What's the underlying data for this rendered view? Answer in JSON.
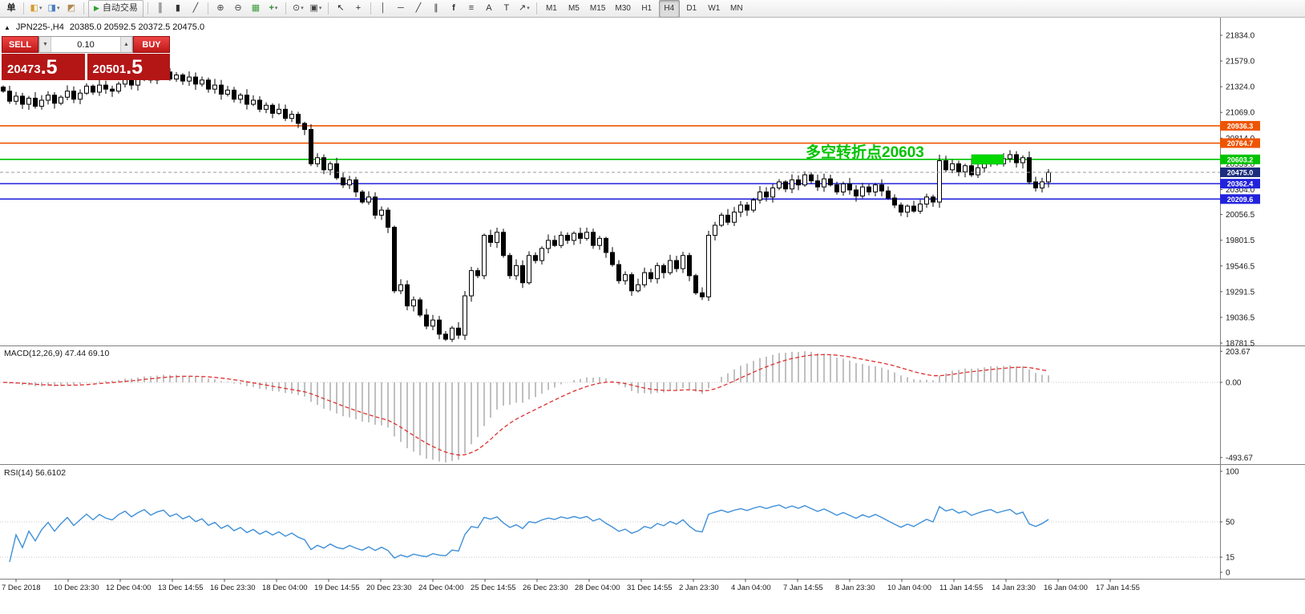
{
  "toolbar": {
    "groups": [
      {
        "items": [
          {
            "name": "new-order-button",
            "glyph": "单",
            "fg": "#222",
            "bold": true
          }
        ]
      },
      {
        "items": [
          {
            "name": "new-chart-button",
            "glyph": "◧",
            "fg": "#d79c2e",
            "caret": true
          },
          {
            "name": "profiles-button",
            "glyph": "◨",
            "fg": "#4a7ec0",
            "caret": true
          },
          {
            "name": "alerts-button",
            "glyph": "◩",
            "fg": "#b08a50"
          }
        ]
      },
      {
        "items": [
          {
            "name": "autotrading-button",
            "kind": "autotrade",
            "label": "自动交易"
          }
        ]
      },
      {
        "items": [
          {
            "name": "bar-chart-button",
            "glyph": "║",
            "fg": "#333"
          },
          {
            "name": "candlestick-chart-button",
            "glyph": "▮",
            "fg": "#333"
          },
          {
            "name": "line-chart-button",
            "glyph": "╱",
            "fg": "#333"
          }
        ]
      },
      {
        "items": [
          {
            "name": "zoom-in-button",
            "glyph": "⊕",
            "fg": "#444"
          },
          {
            "name": "zoom-out-button",
            "glyph": "⊖",
            "fg": "#444"
          },
          {
            "name": "tile-windows-button",
            "glyph": "▦",
            "fg": "#3f9c3f"
          },
          {
            "name": "indicators-button",
            "glyph": "+",
            "fg": "#2e8b2e",
            "bold": true,
            "caret": true
          }
        ]
      },
      {
        "items": [
          {
            "name": "periods-button",
            "glyph": "⊙",
            "fg": "#444",
            "caret": true
          },
          {
            "name": "templates-button",
            "glyph": "▣",
            "fg": "#444",
            "caret": true
          }
        ]
      },
      {
        "items": [
          {
            "name": "cursor-button",
            "glyph": "↖",
            "fg": "#222"
          },
          {
            "name": "crosshair-button",
            "glyph": "+",
            "fg": "#222"
          }
        ]
      },
      {
        "items": [
          {
            "name": "vertical-line-button",
            "glyph": "│",
            "fg": "#333"
          },
          {
            "name": "horizontal-line-button",
            "glyph": "─",
            "fg": "#333"
          },
          {
            "name": "trendline-button",
            "glyph": "╱",
            "fg": "#333"
          },
          {
            "name": "channel-button",
            "glyph": "∥",
            "fg": "#333"
          },
          {
            "name": "fibonacci-button",
            "glyph": "f",
            "fg": "#333",
            "bold": true
          },
          {
            "name": "objects-list-button",
            "glyph": "≡",
            "fg": "#333"
          },
          {
            "name": "text-button",
            "glyph": "A",
            "fg": "#333"
          },
          {
            "name": "text-label-button",
            "glyph": "T",
            "fg": "#333"
          },
          {
            "name": "arrows-button",
            "glyph": "↗",
            "fg": "#333",
            "caret": true
          }
        ]
      },
      {
        "items": [
          {
            "name": "timeframe-m1-button",
            "glyph": "M1",
            "cls": "tb-tf"
          },
          {
            "name": "timeframe-m5-button",
            "glyph": "M5",
            "cls": "tb-tf"
          },
          {
            "name": "timeframe-m15-button",
            "glyph": "M15",
            "cls": "tb-tf"
          },
          {
            "name": "timeframe-m30-button",
            "glyph": "M30",
            "cls": "tb-tf"
          },
          {
            "name": "timeframe-h1-button",
            "glyph": "H1",
            "cls": "tb-tf"
          },
          {
            "name": "timeframe-h4-button",
            "glyph": "H4",
            "cls": "tb-tf active"
          },
          {
            "name": "timeframe-d1-button",
            "glyph": "D1",
            "cls": "tb-tf"
          },
          {
            "name": "timeframe-w1-button",
            "glyph": "W1",
            "cls": "tb-tf"
          },
          {
            "name": "timeframe-mn-button",
            "glyph": "MN",
            "cls": "tb-tf"
          }
        ]
      }
    ]
  },
  "chart": {
    "marker": "▲",
    "title": "JPN225-,H4",
    "ohlc": "20385.0 20592.5 20372.5 20475.0",
    "trade_panel": {
      "sell_label": "SELL",
      "buy_label": "BUY",
      "volume": "0.10",
      "volume_down": "▼",
      "volume_up": "▲",
      "sell_price": "20473",
      "sell_frac": ".5",
      "buy_price": "20501",
      "buy_frac": ".5"
    },
    "annotation": {
      "text": "多空转折点20603",
      "color": "#00C300"
    },
    "levels": [
      {
        "price": 20936.3,
        "label": "20936.3",
        "color": "#ee5500"
      },
      {
        "price": 20764.7,
        "label": "20764.7",
        "color": "#ee5500"
      },
      {
        "price": 20603.2,
        "label": "20603.2",
        "color": "#00c300"
      },
      {
        "price": 20362.4,
        "label": "20362.4",
        "color": "#2222dd"
      },
      {
        "price": 20209.6,
        "label": "20209.6",
        "color": "#2222dd"
      }
    ],
    "current_price": {
      "value": 20475.0,
      "label": "20475.0",
      "bg": "#1c2d7d"
    },
    "axis_ticks": [
      "21834.0",
      "21579.0",
      "21324.0",
      "21069.0",
      "20814.0",
      "20559.0",
      "20304.0",
      "20056.5",
      "19801.5",
      "19546.5",
      "19291.5",
      "19036.5",
      "18781.5"
    ],
    "highlight_box": {
      "bar_start": 151,
      "bar_end": 156,
      "price_top": 20650,
      "price_bottom": 20555,
      "color": "#00d800"
    }
  },
  "macd": {
    "label": "MACD(12,26,9) 47.44 69.10",
    "scale": [
      "203.67",
      "0.00",
      "-493.67"
    ],
    "fast": 12,
    "slow": 26,
    "signal": 9,
    "histogram_color": "#c0c0c0",
    "signal_color": "#e03030"
  },
  "rsi": {
    "label": "RSI(14) 56.6102",
    "scale": [
      "100",
      "50",
      "15",
      "0"
    ],
    "period": 14,
    "levels": [
      50,
      15
    ],
    "line_color": "#3e8fd8"
  },
  "time_axis": [
    "7 Dec 2018",
    "10 Dec 23:30",
    "12 Dec 04:00",
    "13 Dec 14:55",
    "16 Dec 23:30",
    "18 Dec 04:00",
    "19 Dec 14:55",
    "20 Dec 23:30",
    "24 Dec 04:00",
    "25 Dec 14:55",
    "26 Dec 23:30",
    "28 Dec 04:00",
    "31 Dec 14:55",
    "2 Jan 23:30",
    "4 Jan 04:00",
    "7 Jan 14:55",
    "8 Jan 23:30",
    "10 Jan 04:00",
    "11 Jan 14:55",
    "14 Jan 23:30",
    "16 Jan 04:00",
    "17 Jan 14:55"
  ],
  "chart_data": {
    "type": "candlestick",
    "symbol": "JPN225-",
    "timeframe": "H4",
    "ohlc_current": {
      "open": 20385.0,
      "high": 20592.5,
      "low": 20372.5,
      "close": 20475.0
    },
    "y_axis_range": [
      18781.5,
      21834.0
    ],
    "indicators": [
      {
        "type": "MACD",
        "params": [
          12,
          26,
          9
        ],
        "values": [
          47.44,
          69.1
        ],
        "range": [
          -493.67,
          203.67
        ]
      },
      {
        "type": "RSI",
        "params": [
          14
        ],
        "value": 56.6102,
        "range": [
          0,
          100
        ]
      }
    ],
    "closes_approx": [
      21280,
      21180,
      21230,
      21150,
      21210,
      21130,
      21190,
      21240,
      21160,
      21220,
      21280,
      21200,
      21260,
      21330,
      21270,
      21340,
      21300,
      21280,
      21350,
      21400,
      21340,
      21400,
      21450,
      21390,
      21440,
      21470,
      21400,
      21440,
      21380,
      21420,
      21350,
      21390,
      21300,
      21340,
      21250,
      21290,
      21200,
      21240,
      21150,
      21190,
      21100,
      21140,
      21060,
      21100,
      21010,
      21050,
      20960,
      20900,
      20560,
      20620,
      20500,
      20560,
      20420,
      20350,
      20400,
      20280,
      20180,
      20230,
      20050,
      20100,
      19930,
      19300,
      19360,
      19150,
      19210,
      19060,
      18950,
      19010,
      18870,
      18820,
      18930,
      18860,
      19250,
      19500,
      19450,
      19850,
      19780,
      19880,
      19650,
      19450,
      19550,
      19380,
      19650,
      19600,
      19720,
      19800,
      19750,
      19850,
      19800,
      19870,
      19820,
      19880,
      19750,
      19820,
      19680,
      19560,
      19400,
      19460,
      19300,
      19360,
      19480,
      19420,
      19550,
      19480,
      19600,
      19520,
      19650,
      19450,
      19280,
      19240,
      19850,
      19950,
      20050,
      19980,
      20080,
      20150,
      20100,
      20200,
      20280,
      20230,
      20320,
      20380,
      20310,
      20400,
      20350,
      20450,
      20390,
      20330,
      20410,
      20350,
      20280,
      20360,
      20300,
      20240,
      20330,
      20280,
      20350,
      20290,
      20220,
      20150,
      20080,
      20140,
      20090,
      20160,
      20230,
      20180,
      20590,
      20500,
      20560,
      20480,
      20540,
      20450,
      20520,
      20580,
      20620,
      20560,
      20610,
      20650,
      20570,
      20620,
      20380,
      20320,
      20380,
      20475
    ]
  }
}
